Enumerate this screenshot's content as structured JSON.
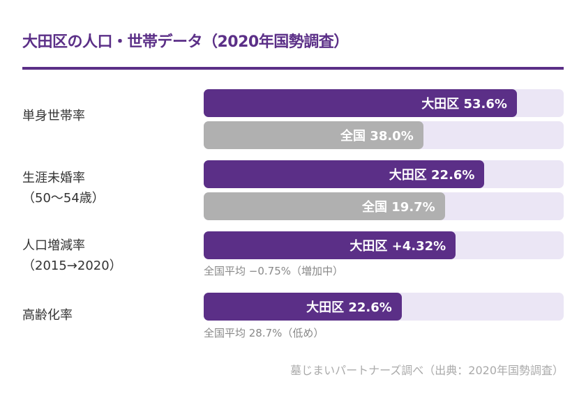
{
  "title": "大田区の人口・世帯データ（2020年国勢調査）",
  "colors": {
    "accent": "#5b2f87",
    "secondary": "#b0b0b0",
    "track": "#ebe6f5"
  },
  "source": "墓じまいパートナーズ調べ（出典：2020年国勢調査）",
  "chart_data": {
    "type": "bar",
    "orientation": "horizontal",
    "title": "大田区の人口・世帯データ（2020年国勢調査）",
    "rows": [
      {
        "label_line1": "単身世帯率",
        "label_line2": "",
        "bars": [
          {
            "series": "大田区",
            "value": 53.6,
            "text": "大田区 53.6%",
            "fill_fraction": 0.87,
            "style": "primary"
          },
          {
            "series": "全国",
            "value": 38.0,
            "text": "全国 38.0%",
            "fill_fraction": 0.61,
            "style": "secondary"
          }
        ],
        "note": ""
      },
      {
        "label_line1": "生涯未婚率",
        "label_line2": "（50〜54歳）",
        "bars": [
          {
            "series": "大田区",
            "value": 22.6,
            "text": "大田区 22.6%",
            "fill_fraction": 0.78,
            "style": "primary"
          },
          {
            "series": "全国",
            "value": 19.7,
            "text": "全国 19.7%",
            "fill_fraction": 0.67,
            "style": "secondary"
          }
        ],
        "note": ""
      },
      {
        "label_line1": "人口増減率",
        "label_line2": "（2015→2020）",
        "bars": [
          {
            "series": "大田区",
            "value": 4.32,
            "text": "大田区 +4.32%",
            "fill_fraction": 0.7,
            "style": "primary"
          }
        ],
        "note": "全国平均 −0.75%（増加中）"
      },
      {
        "label_line1": "高齢化率",
        "label_line2": "",
        "bars": [
          {
            "series": "大田区",
            "value": 22.6,
            "text": "大田区 22.6%",
            "fill_fraction": 0.55,
            "style": "primary"
          }
        ],
        "note": "全国平均 28.7%（低め）"
      }
    ]
  }
}
